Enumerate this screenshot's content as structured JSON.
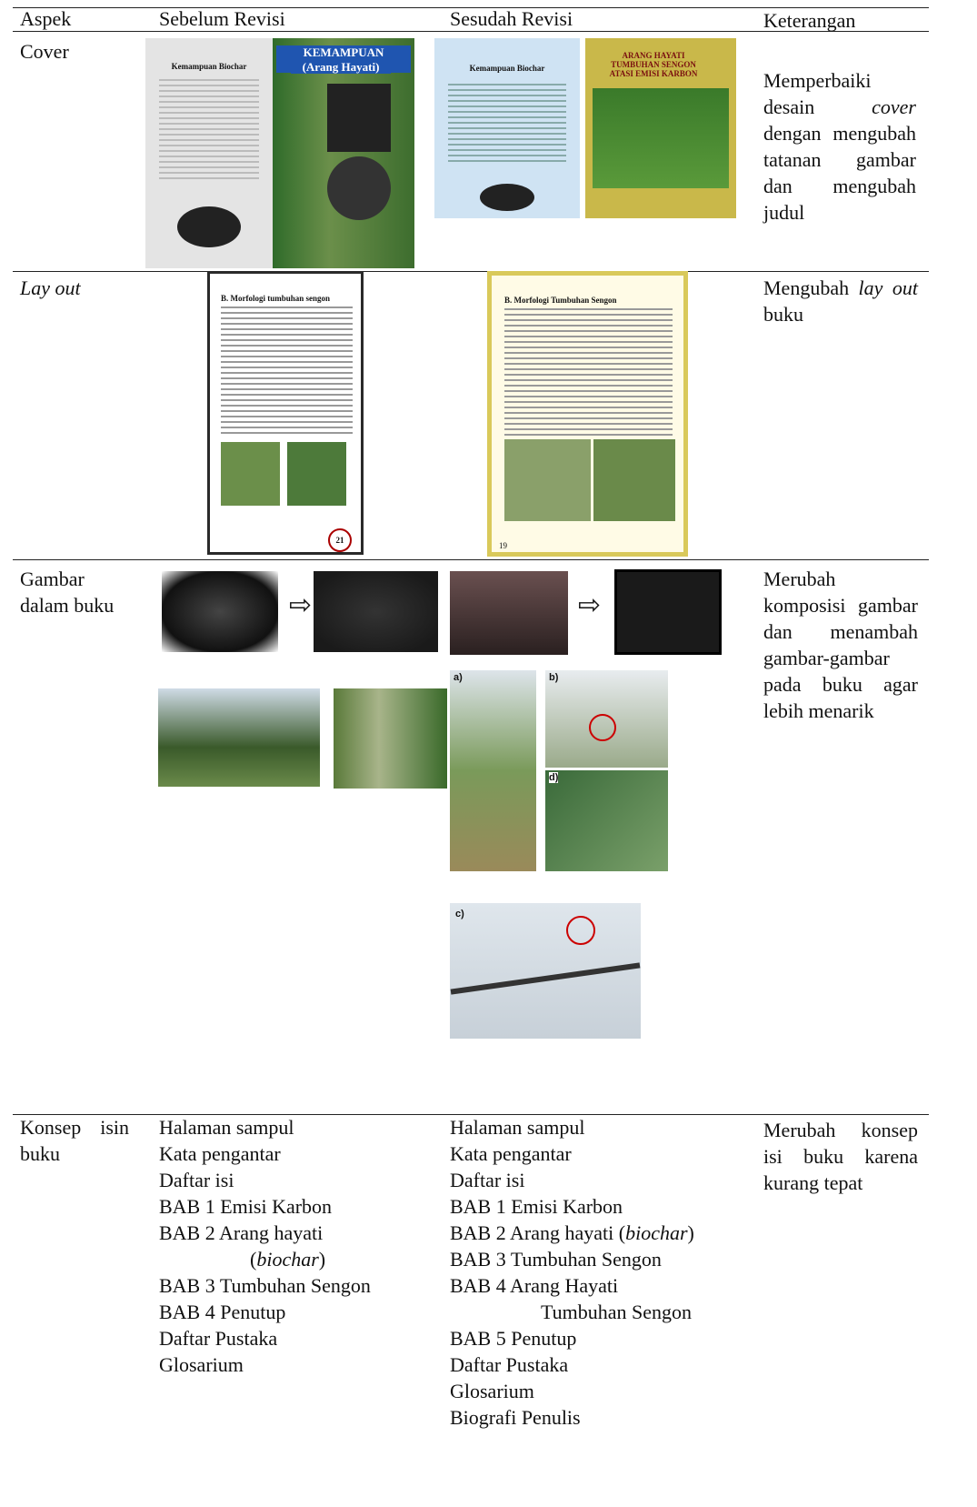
{
  "table": {
    "header": [
      "Aspek",
      "Sebelum Revisi",
      "Sesudah Revisi",
      "Keterangan"
    ],
    "rows": [
      {
        "aspek": "Cover",
        "keterangan": [
          "Memperbaiki desain ",
          "cover",
          " dengan mengubah tatanan gambar dan mengubah judul"
        ],
        "sebelum_texts": [
          "KEMAMPUAN BIOCHAR",
          "(Arang Hayati)",
          "Kemampuan Biochar"
        ],
        "sesudah_texts": [
          "Kemampuan Biochar",
          "ARANG HAYATI TUMBUHAN SENGON ATASI EMISI KARBON"
        ]
      },
      {
        "aspek": "Lay out",
        "keterangan": [
          "Mengubah ",
          "lay out",
          " buku"
        ],
        "sebelum_texts": [
          "B. Morfologi tumbuhan sengon",
          "21"
        ],
        "sesudah_texts": [
          "B. Morfologi Tumbuhan Sengon",
          "19"
        ]
      },
      {
        "aspek": "Gambar dalam buku",
        "keterangan": [
          "Merubah komposisi gambar dan menambah gambar-gambar pada buku agar lebih menarik"
        ],
        "sesudah_texts": [
          "a)",
          "b)",
          "d)",
          "c)"
        ]
      },
      {
        "aspek": "Konsep isin buku",
        "keterangan": [
          "Merubah konsep isi buku karena kurang tepat"
        ],
        "sebelum": [
          "Halaman sampul",
          "Kata pengantar",
          "Daftar isi",
          "BAB 1 Emisi Karbon",
          "BAB 2 Arang hayati",
          [
            "(",
            "biochar",
            ")"
          ],
          "BAB 3 Tumbuhan Sengon",
          "BAB 4 Penutup",
          "Daftar Pustaka",
          "Glosarium"
        ],
        "sesudah": [
          "Halaman sampul",
          "Kata pengantar",
          "Daftar isi",
          "BAB 1 Emisi Karbon",
          [
            "BAB 2 Arang hayati (",
            "biochar",
            ")"
          ],
          "BAB 3 Tumbuhan Sengon",
          "BAB 4 Arang Hayati",
          "Tumbuhan Sengon",
          "BAB 5 Penutup",
          "Daftar Pustaka",
          "Glosarium",
          "Biografi Penulis"
        ]
      }
    ]
  }
}
